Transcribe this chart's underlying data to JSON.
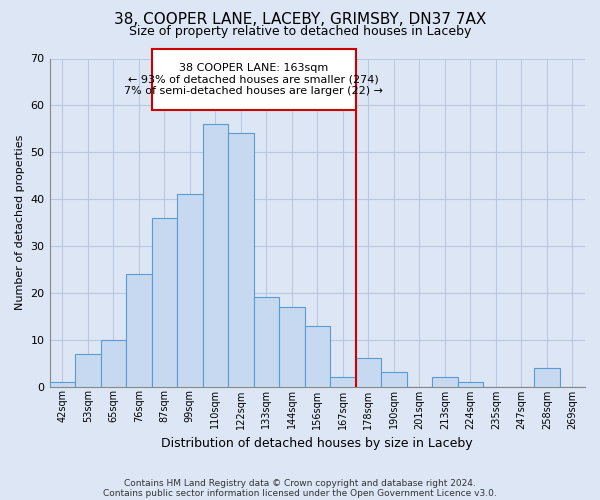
{
  "title": "38, COOPER LANE, LACEBY, GRIMSBY, DN37 7AX",
  "subtitle": "Size of property relative to detached houses in Laceby",
  "xlabel": "Distribution of detached houses by size in Laceby",
  "ylabel": "Number of detached properties",
  "bin_labels": [
    "42sqm",
    "53sqm",
    "65sqm",
    "76sqm",
    "87sqm",
    "99sqm",
    "110sqm",
    "122sqm",
    "133sqm",
    "144sqm",
    "156sqm",
    "167sqm",
    "178sqm",
    "190sqm",
    "201sqm",
    "213sqm",
    "224sqm",
    "235sqm",
    "247sqm",
    "258sqm",
    "269sqm"
  ],
  "bar_heights": [
    1,
    7,
    10,
    24,
    36,
    41,
    56,
    54,
    19,
    17,
    13,
    2,
    6,
    3,
    0,
    2,
    1,
    0,
    0,
    4,
    0
  ],
  "bar_color": "#c6d9f0",
  "bar_edge_color": "#5b9bd5",
  "vline_color": "#cc0000",
  "annotation_line1": "38 COOPER LANE: 163sqm",
  "annotation_line2": "← 93% of detached houses are smaller (274)",
  "annotation_line3": "7% of semi-detached houses are larger (22) →",
  "ylim": [
    0,
    70
  ],
  "yticks": [
    0,
    10,
    20,
    30,
    40,
    50,
    60,
    70
  ],
  "footnote1": "Contains HM Land Registry data © Crown copyright and database right 2024.",
  "footnote2": "Contains public sector information licensed under the Open Government Licence v3.0.",
  "background_color": "#dce6f5",
  "plot_bg_color": "#dce6f5",
  "grid_color": "#b8c8e0"
}
